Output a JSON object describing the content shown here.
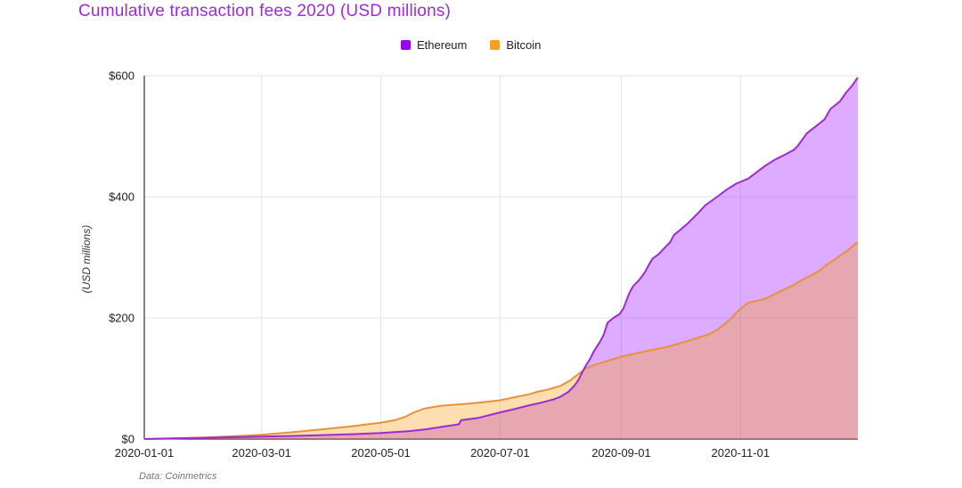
{
  "title": "Cumulative transaction fees 2020 (USD millions)",
  "title_color": "#9D2BDB",
  "source_note": "Data: Coinmetrics",
  "legend": {
    "position": "top-center",
    "items": [
      {
        "label": "Ethereum",
        "color": "#9900F5"
      },
      {
        "label": "Bitcoin",
        "color": "#F5A01E"
      }
    ]
  },
  "colors": {
    "background": "#ffffff",
    "gridline": "#e3e3e3",
    "axis_line": "#333333",
    "tick_text": "#222222"
  },
  "chart_data": {
    "type": "area",
    "title": "Cumulative transaction fees 2020 (USD millions)",
    "xlabel": "",
    "ylabel": "(USD millions)",
    "x_unit": "day-of-year-2020",
    "xlim_days": [
      0,
      365
    ],
    "ylim": [
      0,
      600
    ],
    "grid": true,
    "x_ticks": [
      {
        "day": 0,
        "label": "2020-01-01"
      },
      {
        "day": 60,
        "label": "2020-03-01"
      },
      {
        "day": 121,
        "label": "2020-05-01"
      },
      {
        "day": 182,
        "label": "2020-07-01"
      },
      {
        "day": 244,
        "label": "2020-09-01"
      },
      {
        "day": 305,
        "label": "2020-11-01"
      }
    ],
    "y_ticks": [
      {
        "value": 0,
        "label": "$0"
      },
      {
        "value": 200,
        "label": "$200"
      },
      {
        "value": 400,
        "label": "$400"
      },
      {
        "value": 600,
        "label": "$600"
      }
    ],
    "series": [
      {
        "name": "Ethereum",
        "line_color": "#9C2BD4",
        "fill_color": "rgba(153,0,255,0.33)",
        "end_value": 597,
        "points": [
          [
            0,
            0
          ],
          [
            15,
            1
          ],
          [
            31,
            2
          ],
          [
            45,
            3
          ],
          [
            60,
            4
          ],
          [
            75,
            5
          ],
          [
            91,
            6.5
          ],
          [
            106,
            8
          ],
          [
            121,
            10
          ],
          [
            135,
            13
          ],
          [
            144,
            16
          ],
          [
            152,
            20
          ],
          [
            160,
            24
          ],
          [
            161,
            24.5
          ],
          [
            162,
            31
          ],
          [
            171,
            35
          ],
          [
            182,
            44
          ],
          [
            190,
            50
          ],
          [
            196,
            55
          ],
          [
            203,
            60
          ],
          [
            210,
            66
          ],
          [
            213,
            70
          ],
          [
            217,
            78
          ],
          [
            220,
            88
          ],
          [
            222,
            97
          ],
          [
            224,
            110
          ],
          [
            226,
            122
          ],
          [
            228,
            132
          ],
          [
            230,
            145
          ],
          [
            233,
            160
          ],
          [
            235,
            172
          ],
          [
            237,
            192
          ],
          [
            240,
            200
          ],
          [
            243,
            206
          ],
          [
            245,
            215
          ],
          [
            248,
            240
          ],
          [
            250,
            252
          ],
          [
            253,
            262
          ],
          [
            256,
            275
          ],
          [
            258,
            287
          ],
          [
            260,
            298
          ],
          [
            263,
            305
          ],
          [
            266,
            315
          ],
          [
            269,
            325
          ],
          [
            271,
            337
          ],
          [
            274,
            345
          ],
          [
            278,
            356
          ],
          [
            283,
            372
          ],
          [
            287,
            386
          ],
          [
            293,
            400
          ],
          [
            298,
            412
          ],
          [
            303,
            422
          ],
          [
            309,
            430
          ],
          [
            313,
            440
          ],
          [
            318,
            452
          ],
          [
            323,
            462
          ],
          [
            328,
            470
          ],
          [
            332,
            477
          ],
          [
            334,
            483
          ],
          [
            339,
            505
          ],
          [
            343,
            515
          ],
          [
            348,
            528
          ],
          [
            351,
            545
          ],
          [
            356,
            558
          ],
          [
            359,
            572
          ],
          [
            362,
            583
          ],
          [
            365,
            597
          ]
        ]
      },
      {
        "name": "Bitcoin",
        "line_color": "#E8913A",
        "fill_color": "rgba(245,160,30,0.35)",
        "end_value": 325,
        "points": [
          [
            0,
            0
          ],
          [
            15,
            1
          ],
          [
            31,
            2.5
          ],
          [
            45,
            4.5
          ],
          [
            60,
            7
          ],
          [
            75,
            11
          ],
          [
            91,
            16
          ],
          [
            106,
            21
          ],
          [
            121,
            27
          ],
          [
            128,
            31
          ],
          [
            133,
            36
          ],
          [
            138,
            44
          ],
          [
            143,
            50
          ],
          [
            148,
            53
          ],
          [
            152,
            55
          ],
          [
            160,
            57
          ],
          [
            166,
            58.5
          ],
          [
            174,
            61
          ],
          [
            182,
            64
          ],
          [
            191,
            70
          ],
          [
            197,
            74
          ],
          [
            201,
            78
          ],
          [
            207,
            82
          ],
          [
            213,
            88
          ],
          [
            218,
            97
          ],
          [
            222,
            107
          ],
          [
            224,
            112
          ],
          [
            226,
            117
          ],
          [
            230,
            122
          ],
          [
            234,
            126
          ],
          [
            238,
            130
          ],
          [
            244,
            136
          ],
          [
            251,
            141
          ],
          [
            258,
            146
          ],
          [
            266,
            151
          ],
          [
            274,
            158
          ],
          [
            281,
            165
          ],
          [
            288,
            172
          ],
          [
            293,
            180
          ],
          [
            297,
            190
          ],
          [
            300,
            199
          ],
          [
            303,
            209
          ],
          [
            305,
            215
          ],
          [
            309,
            225
          ],
          [
            313,
            228
          ],
          [
            318,
            232
          ],
          [
            323,
            240
          ],
          [
            328,
            248
          ],
          [
            332,
            254
          ],
          [
            336,
            262
          ],
          [
            341,
            270
          ],
          [
            345,
            277
          ],
          [
            350,
            290
          ],
          [
            353,
            296
          ],
          [
            356,
            303
          ],
          [
            360,
            312
          ],
          [
            363,
            320
          ],
          [
            365,
            325
          ]
        ]
      }
    ]
  }
}
